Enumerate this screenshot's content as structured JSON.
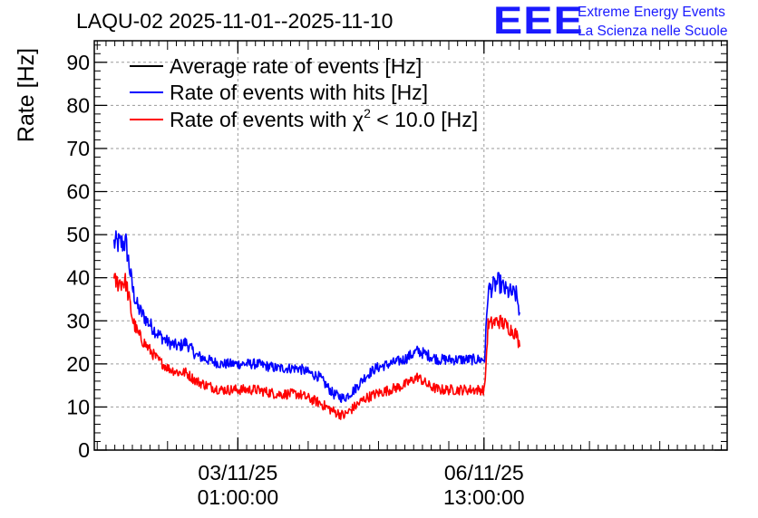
{
  "chart_data": {
    "type": "line",
    "title": "LAQU-02 2025-11-01--2025-11-10",
    "ylabel": "Rate [Hz]",
    "xlabel": "",
    "xlim": [
      0,
      9.0
    ],
    "ylim": [
      0,
      95
    ],
    "yticks": [
      0,
      10,
      20,
      30,
      40,
      50,
      60,
      70,
      80,
      90
    ],
    "yticklabels": [
      "0",
      "10",
      "20",
      "30",
      "40",
      "50",
      "60",
      "70",
      "80",
      "90"
    ],
    "xticks": [
      2.0417,
      5.5417
    ],
    "xticklabels": [
      {
        "date": "03/11/25",
        "time": "01:00:00"
      },
      {
        "date": "06/11/25",
        "time": "13:00:00"
      }
    ],
    "grid": true,
    "legend_position": "top-left",
    "series": [
      {
        "name": "Average rate of events [Hz]",
        "color": "#000000",
        "x": [],
        "y": []
      },
      {
        "name": "Rate of events with hits [Hz]",
        "color": "#0000ff",
        "x": [
          0.28,
          0.45,
          0.55,
          0.62,
          0.75,
          0.9,
          1.05,
          1.2,
          1.3,
          1.45,
          1.6,
          1.8,
          2.0,
          2.3,
          2.6,
          2.9,
          3.2,
          3.4,
          3.55,
          3.7,
          3.85,
          4.0,
          4.2,
          4.4,
          4.6,
          4.75,
          4.9,
          5.05,
          5.2,
          5.4,
          5.55,
          5.6,
          5.75,
          5.85,
          6.0,
          6.05
        ],
        "y": [
          48,
          48,
          37,
          33,
          30,
          27,
          25,
          24,
          25,
          22,
          21,
          20,
          20,
          20,
          19,
          19,
          17,
          13,
          12,
          14,
          17,
          19,
          20,
          21,
          23,
          22,
          21,
          21,
          21,
          21,
          21,
          37,
          39,
          37,
          36,
          32
        ]
      },
      {
        "name": "Rate of events with χ² < 10.0 [Hz]",
        "color": "#ff0000",
        "x": [
          0.28,
          0.45,
          0.55,
          0.62,
          0.75,
          0.9,
          1.05,
          1.2,
          1.3,
          1.45,
          1.6,
          1.8,
          2.0,
          2.3,
          2.6,
          2.9,
          3.2,
          3.4,
          3.55,
          3.7,
          3.85,
          4.0,
          4.2,
          4.4,
          4.6,
          4.75,
          4.9,
          5.05,
          5.2,
          5.4,
          5.55,
          5.6,
          5.75,
          5.85,
          6.0,
          6.05
        ],
        "y": [
          39,
          39,
          30,
          27,
          24,
          21,
          19,
          18,
          18,
          16,
          15,
          14,
          14,
          14,
          13,
          13,
          11,
          9,
          8,
          10,
          12,
          13,
          14,
          15,
          17,
          15,
          14,
          14,
          14,
          14,
          14,
          29,
          30,
          29,
          27,
          24
        ]
      }
    ]
  },
  "legend": {
    "entry1": "Average rate of events [Hz]",
    "entry2": "Rate of events with hits [Hz]",
    "entry3_prefix": "Rate of events with ",
    "entry3_chi": "χ",
    "entry3_sup": "2",
    "entry3_suffix": " < 10.0 [Hz]"
  },
  "logo": {
    "mark": "EEE",
    "line1": "Extreme Energy Events",
    "line2": "La Scienza nelle Scuole"
  },
  "colors": {
    "axis": "#000000",
    "grid": "#9a9a9a",
    "logo": "#1a1aff"
  }
}
